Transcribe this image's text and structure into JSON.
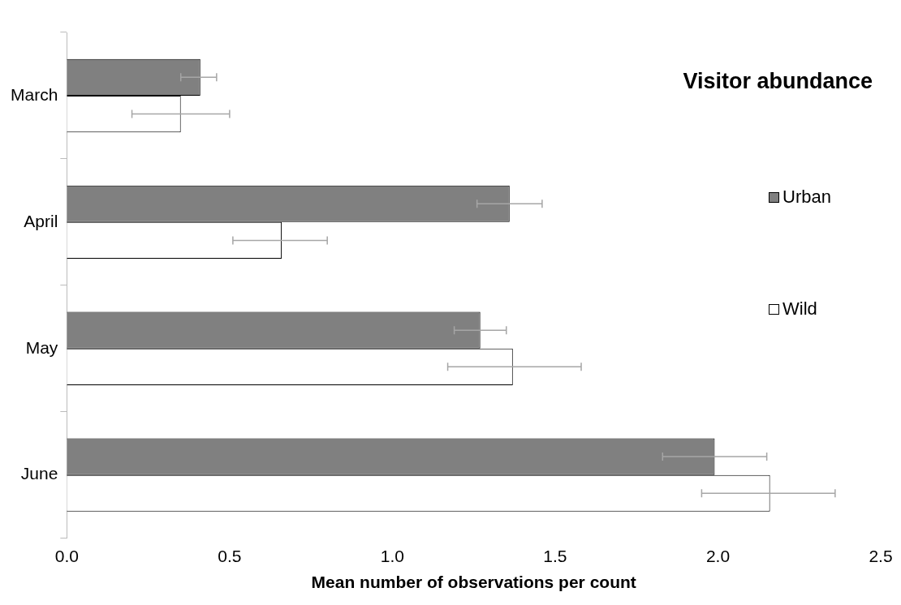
{
  "chart_data": {
    "type": "bar",
    "orientation": "horizontal",
    "title": "Visitor abundance",
    "xlabel": "Mean number of observations per count",
    "categories": [
      "March",
      "April",
      "May",
      "June"
    ],
    "series": [
      {
        "name": "Urban",
        "color": "#808080",
        "values": [
          0.41,
          1.36,
          1.27,
          1.99
        ],
        "errors": [
          [
            0.35,
            0.46
          ],
          [
            1.26,
            1.46
          ],
          [
            1.19,
            1.35
          ],
          [
            1.83,
            2.15
          ]
        ]
      },
      {
        "name": "Wild",
        "color": "#ffffff",
        "values": [
          0.35,
          0.66,
          1.37,
          2.16
        ],
        "errors": [
          [
            0.2,
            0.5
          ],
          [
            0.51,
            0.8
          ],
          [
            1.17,
            1.58
          ],
          [
            1.95,
            2.36
          ]
        ]
      }
    ],
    "xlim": [
      0,
      2.5
    ],
    "xticks": [
      {
        "value": 0,
        "label": "0.0"
      },
      {
        "value": 0.5,
        "label": "0.5"
      },
      {
        "value": 1,
        "label": "1.0"
      },
      {
        "value": 1.5,
        "label": "1.5"
      },
      {
        "value": 2,
        "label": "2.0"
      },
      {
        "value": 2.5,
        "label": "2.5"
      }
    ],
    "grid": false,
    "legend": "right"
  }
}
